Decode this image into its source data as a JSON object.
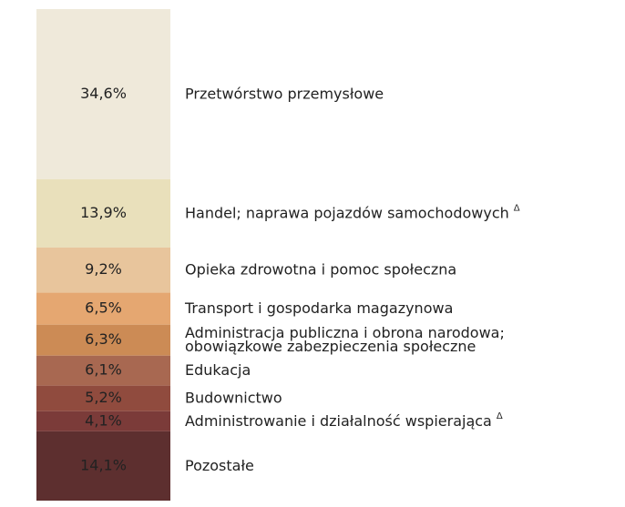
{
  "chart_data": {
    "type": "stacked-column",
    "ylim": [
      0,
      100
    ],
    "series": [
      {
        "name": [
          "Przetwórstwo przemysłowe"
        ],
        "color": "#efe9da",
        "values": [
          34.6
        ],
        "value_labels": [
          "34,6%"
        ]
      },
      {
        "name": [
          "Handel; naprawa pojazdów samochodowych"
        ],
        "superscript": "Δ",
        "color": "#e9e0bb",
        "values": [
          13.9
        ],
        "value_labels": [
          "13,9%"
        ]
      },
      {
        "name": [
          "Opieka zdrowotna i pomoc społeczna"
        ],
        "color": "#e8c59c",
        "values": [
          9.2
        ],
        "value_labels": [
          "9,2%"
        ]
      },
      {
        "name": [
          "Transport i gospodarka magazynowa"
        ],
        "color": "#e5a771",
        "values": [
          6.5
        ],
        "value_labels": [
          "6,5%"
        ]
      },
      {
        "name": [
          "Administracja publiczna i obrona narodowa;",
          "obowiązkowe zabezpieczenia społeczne"
        ],
        "color": "#cc8b55",
        "values": [
          6.3
        ],
        "value_labels": [
          "6,3%"
        ]
      },
      {
        "name": [
          "Edukacja"
        ],
        "color": "#a86851",
        "values": [
          6.1
        ],
        "value_labels": [
          "6,1%"
        ]
      },
      {
        "name": [
          "Budownictwo"
        ],
        "color": "#904b3e",
        "values": [
          5.2
        ],
        "value_labels": [
          "5,2%"
        ]
      },
      {
        "name": [
          "Administrowanie i działalność wspierająca"
        ],
        "superscript": "Δ",
        "color": "#7b3b39",
        "values": [
          4.1
        ],
        "value_labels": [
          "4,1%"
        ]
      },
      {
        "name": [
          "Pozostałe"
        ],
        "color": "#5d2f2f",
        "values": [
          14.1
        ],
        "value_labels": [
          "14,1%"
        ]
      }
    ]
  }
}
